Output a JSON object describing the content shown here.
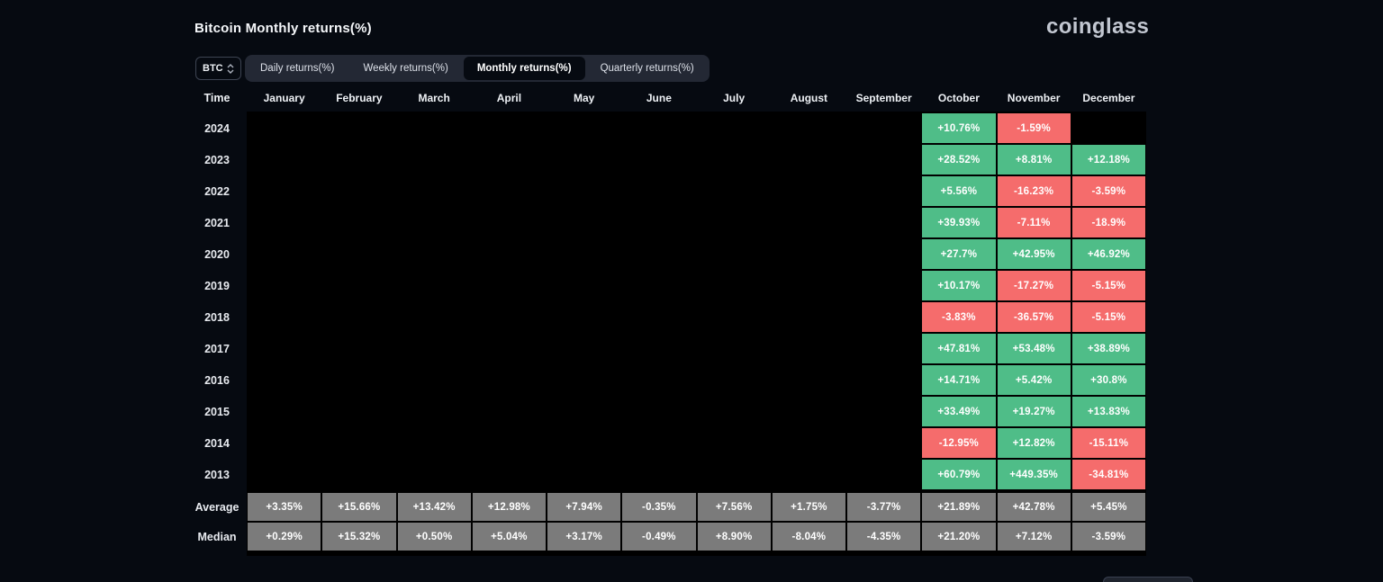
{
  "header": {
    "title": "Bitcoin Monthly returns(%)",
    "logo": "coinglass"
  },
  "controls": {
    "symbol": "BTC",
    "tabs": [
      {
        "label": "Daily returns(%)",
        "active": false
      },
      {
        "label": "Weekly returns(%)",
        "active": false
      },
      {
        "label": "Monthly returns(%)",
        "active": true
      },
      {
        "label": "Quarterly returns(%)",
        "active": false
      }
    ]
  },
  "colors": {
    "green": "#4fbd88",
    "red": "#f56c6c",
    "gray": "#7b7b7b",
    "black": "#000000"
  },
  "table": {
    "time_header": "Time",
    "months": [
      "January",
      "February",
      "March",
      "April",
      "May",
      "June",
      "July",
      "August",
      "September",
      "October",
      "November",
      "December"
    ],
    "rows": [
      {
        "label": "2024",
        "type": "year",
        "cells": [
          null,
          null,
          null,
          null,
          null,
          null,
          null,
          null,
          null,
          {
            "v": "+10.76%",
            "c": "green"
          },
          {
            "v": "-1.59%",
            "c": "red"
          },
          null
        ]
      },
      {
        "label": "2023",
        "type": "year",
        "cells": [
          null,
          null,
          null,
          null,
          null,
          null,
          null,
          null,
          null,
          {
            "v": "+28.52%",
            "c": "green"
          },
          {
            "v": "+8.81%",
            "c": "green"
          },
          {
            "v": "+12.18%",
            "c": "green"
          }
        ]
      },
      {
        "label": "2022",
        "type": "year",
        "cells": [
          null,
          null,
          null,
          null,
          null,
          null,
          null,
          null,
          null,
          {
            "v": "+5.56%",
            "c": "green"
          },
          {
            "v": "-16.23%",
            "c": "red"
          },
          {
            "v": "-3.59%",
            "c": "red"
          }
        ]
      },
      {
        "label": "2021",
        "type": "year",
        "cells": [
          null,
          null,
          null,
          null,
          null,
          null,
          null,
          null,
          null,
          {
            "v": "+39.93%",
            "c": "green"
          },
          {
            "v": "-7.11%",
            "c": "red"
          },
          {
            "v": "-18.9%",
            "c": "red"
          }
        ]
      },
      {
        "label": "2020",
        "type": "year",
        "cells": [
          null,
          null,
          null,
          null,
          null,
          null,
          null,
          null,
          null,
          {
            "v": "+27.7%",
            "c": "green"
          },
          {
            "v": "+42.95%",
            "c": "green"
          },
          {
            "v": "+46.92%",
            "c": "green"
          }
        ]
      },
      {
        "label": "2019",
        "type": "year",
        "cells": [
          null,
          null,
          null,
          null,
          null,
          null,
          null,
          null,
          null,
          {
            "v": "+10.17%",
            "c": "green"
          },
          {
            "v": "-17.27%",
            "c": "red"
          },
          {
            "v": "-5.15%",
            "c": "red"
          }
        ]
      },
      {
        "label": "2018",
        "type": "year",
        "cells": [
          null,
          null,
          null,
          null,
          null,
          null,
          null,
          null,
          null,
          {
            "v": "-3.83%",
            "c": "red"
          },
          {
            "v": "-36.57%",
            "c": "red"
          },
          {
            "v": "-5.15%",
            "c": "red"
          }
        ]
      },
      {
        "label": "2017",
        "type": "year",
        "cells": [
          null,
          null,
          null,
          null,
          null,
          null,
          null,
          null,
          null,
          {
            "v": "+47.81%",
            "c": "green"
          },
          {
            "v": "+53.48%",
            "c": "green"
          },
          {
            "v": "+38.89%",
            "c": "green"
          }
        ]
      },
      {
        "label": "2016",
        "type": "year",
        "cells": [
          null,
          null,
          null,
          null,
          null,
          null,
          null,
          null,
          null,
          {
            "v": "+14.71%",
            "c": "green"
          },
          {
            "v": "+5.42%",
            "c": "green"
          },
          {
            "v": "+30.8%",
            "c": "green"
          }
        ]
      },
      {
        "label": "2015",
        "type": "year",
        "cells": [
          null,
          null,
          null,
          null,
          null,
          null,
          null,
          null,
          null,
          {
            "v": "+33.49%",
            "c": "green"
          },
          {
            "v": "+19.27%",
            "c": "green"
          },
          {
            "v": "+13.83%",
            "c": "green"
          }
        ]
      },
      {
        "label": "2014",
        "type": "year",
        "cells": [
          null,
          null,
          null,
          null,
          null,
          null,
          null,
          null,
          null,
          {
            "v": "-12.95%",
            "c": "red"
          },
          {
            "v": "+12.82%",
            "c": "green"
          },
          {
            "v": "-15.11%",
            "c": "red"
          }
        ]
      },
      {
        "label": "2013",
        "type": "year",
        "cells": [
          null,
          null,
          null,
          null,
          null,
          null,
          null,
          null,
          null,
          {
            "v": "+60.79%",
            "c": "green"
          },
          {
            "v": "+449.35%",
            "c": "green"
          },
          {
            "v": "-34.81%",
            "c": "red"
          }
        ]
      },
      {
        "label": "Average",
        "type": "summary",
        "cells": [
          {
            "v": "+3.35%",
            "c": "gray"
          },
          {
            "v": "+15.66%",
            "c": "gray"
          },
          {
            "v": "+13.42%",
            "c": "gray"
          },
          {
            "v": "+12.98%",
            "c": "gray"
          },
          {
            "v": "+7.94%",
            "c": "gray"
          },
          {
            "v": "-0.35%",
            "c": "gray"
          },
          {
            "v": "+7.56%",
            "c": "gray"
          },
          {
            "v": "+1.75%",
            "c": "gray"
          },
          {
            "v": "-3.77%",
            "c": "gray"
          },
          {
            "v": "+21.89%",
            "c": "gray"
          },
          {
            "v": "+42.78%",
            "c": "gray"
          },
          {
            "v": "+5.45%",
            "c": "gray"
          }
        ]
      },
      {
        "label": "Median",
        "type": "summary",
        "cells": [
          {
            "v": "+0.29%",
            "c": "gray"
          },
          {
            "v": "+15.32%",
            "c": "gray"
          },
          {
            "v": "+0.50%",
            "c": "gray"
          },
          {
            "v": "+5.04%",
            "c": "gray"
          },
          {
            "v": "+3.17%",
            "c": "gray"
          },
          {
            "v": "-0.49%",
            "c": "gray"
          },
          {
            "v": "+8.90%",
            "c": "gray"
          },
          {
            "v": "-8.04%",
            "c": "gray"
          },
          {
            "v": "-4.35%",
            "c": "gray"
          },
          {
            "v": "+21.20%",
            "c": "gray"
          },
          {
            "v": "+7.12%",
            "c": "gray"
          },
          {
            "v": "-3.59%",
            "c": "gray"
          }
        ]
      }
    ]
  }
}
